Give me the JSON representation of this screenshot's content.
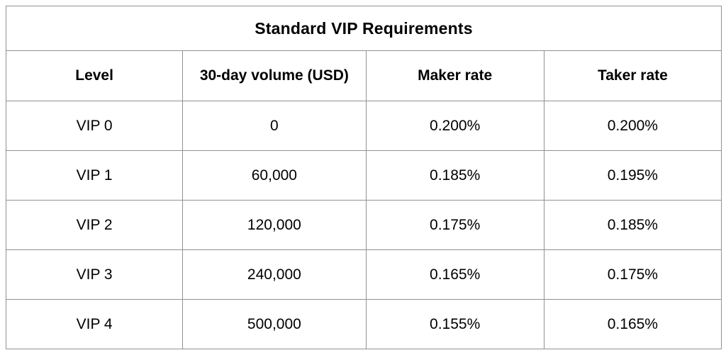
{
  "title": "Standard VIP Requirements",
  "table": {
    "columns": [
      "Level",
      "30-day volume (USD)",
      "Maker rate",
      "Taker rate"
    ],
    "rows": [
      [
        "VIP 0",
        "0",
        "0.200%",
        "0.200%"
      ],
      [
        "VIP 1",
        "60,000",
        "0.185%",
        "0.195%"
      ],
      [
        "VIP 2",
        "120,000",
        "0.175%",
        "0.185%"
      ],
      [
        "VIP 3",
        "240,000",
        "0.165%",
        "0.175%"
      ],
      [
        "VIP 4",
        "500,000",
        "0.155%",
        "0.165%"
      ]
    ]
  },
  "colors": {
    "border": "#919191",
    "text": "#000000",
    "background": "#ffffff"
  },
  "chart_data": {
    "type": "table",
    "title": "Standard VIP Requirements",
    "columns": [
      "Level",
      "30-day volume (USD)",
      "Maker rate",
      "Taker rate"
    ],
    "rows": [
      {
        "level": "VIP 0",
        "volume_30d_usd": 0,
        "maker_rate": "0.200%",
        "taker_rate": "0.200%"
      },
      {
        "level": "VIP 1",
        "volume_30d_usd": 60000,
        "maker_rate": "0.185%",
        "taker_rate": "0.195%"
      },
      {
        "level": "VIP 2",
        "volume_30d_usd": 120000,
        "maker_rate": "0.175%",
        "taker_rate": "0.185%"
      },
      {
        "level": "VIP 3",
        "volume_30d_usd": 240000,
        "maker_rate": "0.165%",
        "taker_rate": "0.175%"
      },
      {
        "level": "VIP 4",
        "volume_30d_usd": 500000,
        "maker_rate": "0.155%",
        "taker_rate": "0.165%"
      }
    ]
  }
}
